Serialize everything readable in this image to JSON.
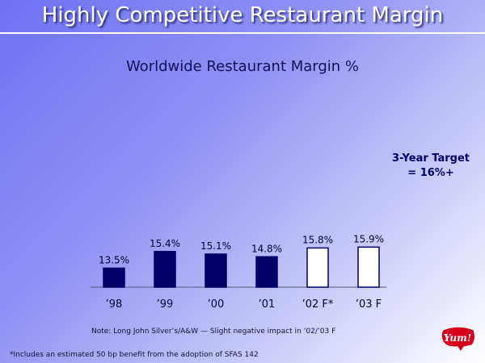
{
  "header": {
    "title": "Highly Competitive Restaurant Margin",
    "logo_text": "Yum!"
  },
  "chart_data": {
    "type": "bar",
    "title": "Worldwide Restaurant Margin %",
    "categories": [
      "’98",
      "’99",
      "’00",
      "’01",
      "’02 F*",
      "’03 F"
    ],
    "values": [
      13.5,
      15.4,
      15.1,
      14.8,
      15.8,
      15.9
    ],
    "value_labels": [
      "13.5%",
      "15.4%",
      "15.1%",
      "14.8%",
      "15.8%",
      "15.9%"
    ],
    "bar_styles": [
      "actual",
      "actual",
      "actual",
      "actual",
      "forecast",
      "forecast"
    ],
    "colors": {
      "actual": "#000066",
      "forecast": "#ffffff"
    },
    "grid": false,
    "annotation": "3-Year Target = 16%+"
  },
  "notes": {
    "note": "Note: Long John Silver’s/A&W — Slight negative impact in ’02/’03 F",
    "footnote": "*Includes an estimated 50 bp benefit from the adoption of SFAS 142"
  }
}
